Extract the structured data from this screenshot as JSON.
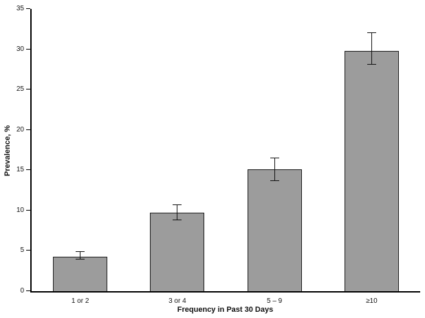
{
  "chart_data": {
    "type": "bar",
    "categories": [
      "1 or 2",
      "3 or 4",
      "5 – 9",
      "≥10"
    ],
    "values": [
      4.3,
      9.7,
      15.1,
      29.8
    ],
    "error_low": [
      3.9,
      8.8,
      13.7,
      28.1
    ],
    "error_high": [
      4.9,
      10.7,
      16.5,
      32.0
    ],
    "title": "",
    "xlabel": "Frequency in Past 30 Days",
    "ylabel": "Prevalence, %",
    "ylim": [
      0,
      35
    ],
    "yticks": [
      0,
      5,
      10,
      15,
      20,
      25,
      30,
      35
    ],
    "bar_color": "#9c9c9c",
    "bar_border_color": "#1a1a1a",
    "axis_color": "#000000",
    "background_color": "#ffffff",
    "legend": "none",
    "grid": false
  }
}
